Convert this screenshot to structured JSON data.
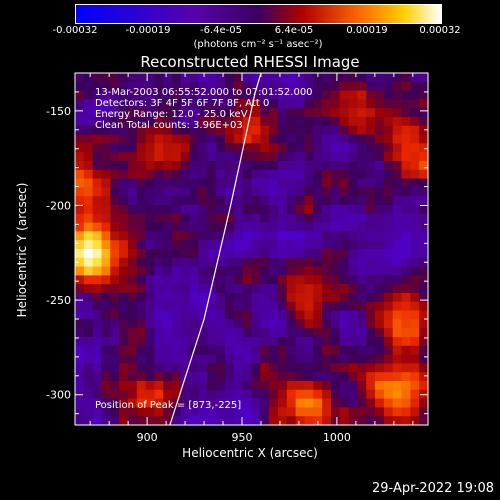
{
  "chart_data": {
    "type": "heatmap",
    "title": "Reconstructed RHESSI Image",
    "xlabel": "Heliocentric X (arcsec)",
    "ylabel": "Heliocentric Y (arcsec)",
    "xlim": [
      862,
      1048
    ],
    "ylim": [
      -316,
      -130
    ],
    "x_ticks": [
      900,
      950,
      1000
    ],
    "y_ticks": [
      -150,
      -200,
      -250,
      -300
    ],
    "colorbar": {
      "range": [
        -0.00032,
        0.00032
      ],
      "tick_labels": [
        "-0.00032",
        "-0.00019",
        "-6.4e-05",
        "6.4e-05",
        "0.00019",
        "0.00032"
      ],
      "units": "(photons cm⁻² s⁻¹ asec⁻²)"
    },
    "annotations": [
      "13-Mar-2003 06:55:52.000 to 07:01:52.000",
      "Detectors: 3F 4F 5F 6F 7F 8F, Att 0",
      "Energy Range: 12.0 - 25.0 keV",
      "Clean     Total counts: 3.96E+03"
    ],
    "peak_label": "Position of Peak = [873,-225]",
    "peak": [
      873,
      -225
    ],
    "limb_curve": [
      [
        912,
        -316
      ],
      [
        930,
        -260
      ],
      [
        944,
        -200
      ],
      [
        957,
        -140
      ],
      [
        960,
        -130
      ]
    ],
    "bright_sources": [
      {
        "x": 873,
        "y": -225,
        "level": 1.0
      },
      {
        "x": 1030,
        "y": -300,
        "level": 0.7
      },
      {
        "x": 1035,
        "y": -265,
        "level": 0.6
      },
      {
        "x": 985,
        "y": -305,
        "level": 0.55
      },
      {
        "x": 905,
        "y": -175,
        "level": 0.45
      },
      {
        "x": 865,
        "y": -190,
        "level": 0.5
      },
      {
        "x": 1040,
        "y": -170,
        "level": 0.45
      },
      {
        "x": 1015,
        "y": -150,
        "level": 0.4
      },
      {
        "x": 955,
        "y": -160,
        "level": 0.35
      },
      {
        "x": 990,
        "y": -245,
        "level": 0.35
      },
      {
        "x": 900,
        "y": -300,
        "level": 0.3
      }
    ]
  },
  "footer": {
    "date": "29-Apr-2022 19:08"
  }
}
